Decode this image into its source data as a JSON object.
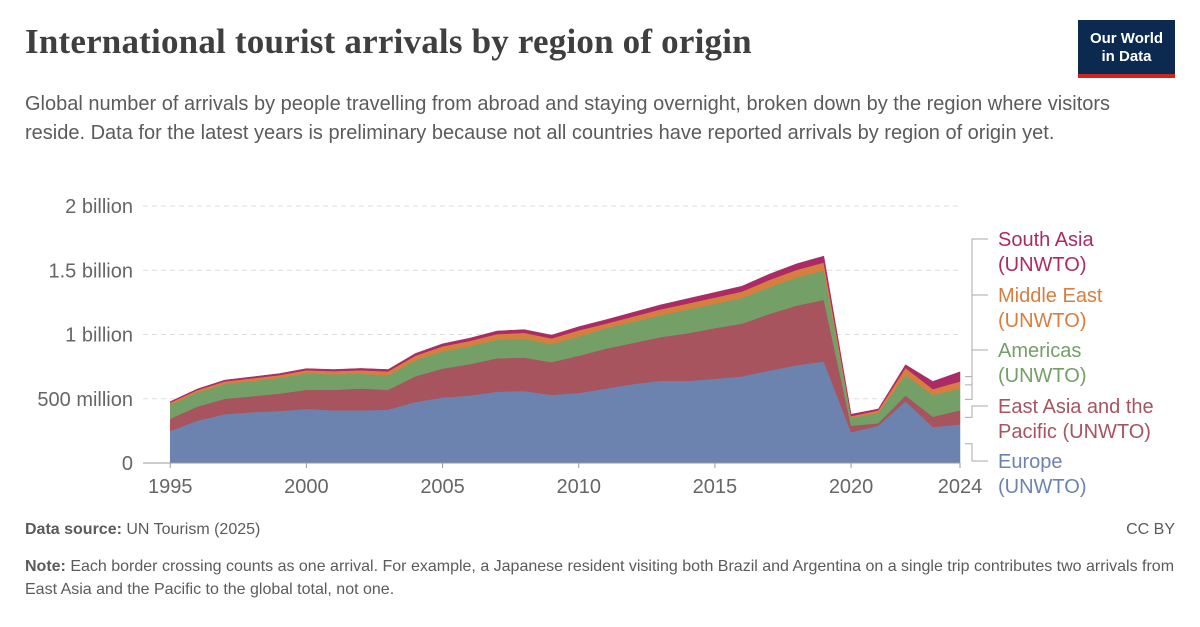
{
  "header": {
    "title": "International tourist arrivals by region of origin",
    "subtitle": "Global number of arrivals by people travelling from abroad and staying overnight, broken down by the region where visitors reside. Data for the latest years is preliminary because not all countries have reported arrivals by region of origin yet.",
    "logo_line1": "Our World",
    "logo_line2": "in Data"
  },
  "footer": {
    "source_label": "Data source:",
    "source_text": "UN Tourism (2025)",
    "license": "CC BY",
    "note_label": "Note:",
    "note_text": "Each border crossing counts as one arrival. For example, a Japanese resident visiting both Brazil and Argentina on a single trip contributes two arrivals from East Asia and the Pacific to the global total, not one."
  },
  "colors": {
    "Europe": "#6d83af",
    "East Asia and the Pacific": "#a7545f",
    "Americas": "#749f66",
    "Middle East": "#d77e3f",
    "South Asia": "#ab2b66",
    "grid": "#dddddd",
    "axis_text": "#666666"
  },
  "chart_data": {
    "type": "area",
    "stacked": true,
    "title": "International tourist arrivals by region of origin",
    "x": [
      1995,
      1996,
      1997,
      1998,
      1999,
      2000,
      2001,
      2002,
      2003,
      2004,
      2005,
      2006,
      2007,
      2008,
      2009,
      2010,
      2011,
      2012,
      2013,
      2014,
      2015,
      2016,
      2017,
      2018,
      2019,
      2020,
      2021,
      2022,
      2023,
      2024
    ],
    "x_ticks": [
      "1995",
      "2000",
      "2005",
      "2010",
      "2015",
      "2020",
      "2024"
    ],
    "x_tick_values": [
      1995,
      2000,
      2005,
      2010,
      2015,
      2020,
      2024
    ],
    "xlim": [
      1994,
      2024
    ],
    "ylim": [
      0,
      2000000000
    ],
    "y_ticks": [
      {
        "value": 0,
        "label": "0"
      },
      {
        "value": 500000000,
        "label": "500 million"
      },
      {
        "value": 1000000000,
        "label": "1 billion"
      },
      {
        "value": 1500000000,
        "label": "1.5 billion"
      },
      {
        "value": 2000000000,
        "label": "2 billion"
      }
    ],
    "grid": true,
    "legend_position": "right",
    "series": [
      {
        "name": "Europe (UNWTO)",
        "key": "Europe",
        "label_lines": [
          "Europe",
          "(UNWTO)"
        ],
        "values": [
          250000000,
          330000000,
          380000000,
          395000000,
          405000000,
          420000000,
          410000000,
          410000000,
          415000000,
          475000000,
          510000000,
          525000000,
          555000000,
          560000000,
          530000000,
          545000000,
          580000000,
          615000000,
          640000000,
          640000000,
          655000000,
          675000000,
          720000000,
          760000000,
          790000000,
          240000000,
          290000000,
          480000000,
          280000000,
          300000000
        ]
      },
      {
        "name": "East Asia and the Pacific (UNWTO)",
        "key": "East Asia and the Pacific",
        "label_lines": [
          "East Asia and the",
          "Pacific (UNWTO)"
        ],
        "values": [
          95000000,
          110000000,
          120000000,
          125000000,
          135000000,
          150000000,
          160000000,
          170000000,
          155000000,
          200000000,
          225000000,
          245000000,
          260000000,
          260000000,
          255000000,
          290000000,
          310000000,
          320000000,
          340000000,
          370000000,
          395000000,
          410000000,
          440000000,
          465000000,
          480000000,
          50000000,
          20000000,
          45000000,
          80000000,
          110000000
        ]
      },
      {
        "name": "Americas (UNWTO)",
        "key": "Americas",
        "label_lines": [
          "Americas",
          "(UNWTO)"
        ],
        "values": [
          110000000,
          110000000,
          115000000,
          118000000,
          122000000,
          128000000,
          120000000,
          115000000,
          113000000,
          125000000,
          135000000,
          140000000,
          145000000,
          148000000,
          140000000,
          150000000,
          160000000,
          165000000,
          170000000,
          185000000,
          190000000,
          200000000,
          210000000,
          220000000,
          230000000,
          60000000,
          80000000,
          160000000,
          170000000,
          170000000
        ]
      },
      {
        "name": "Middle East (UNWTO)",
        "key": "Middle East",
        "label_lines": [
          "Middle East",
          "(UNWTO)"
        ],
        "values": [
          15000000,
          18000000,
          20000000,
          21000000,
          22000000,
          24000000,
          25000000,
          27000000,
          30000000,
          35000000,
          38000000,
          40000000,
          43000000,
          45000000,
          45000000,
          48000000,
          35000000,
          40000000,
          45000000,
          46000000,
          48000000,
          50000000,
          55000000,
          58000000,
          60000000,
          15000000,
          20000000,
          55000000,
          45000000,
          55000000
        ]
      },
      {
        "name": "South Asia (UNWTO)",
        "key": "South Asia",
        "label_lines": [
          "South Asia",
          "(UNWTO)"
        ],
        "values": [
          8000000,
          9000000,
          10000000,
          11000000,
          12000000,
          13000000,
          13000000,
          14000000,
          15000000,
          17000000,
          20000000,
          22000000,
          24000000,
          25000000,
          25000000,
          28000000,
          30000000,
          33000000,
          35000000,
          38000000,
          40000000,
          42000000,
          45000000,
          47000000,
          50000000,
          15000000,
          10000000,
          25000000,
          60000000,
          75000000
        ]
      }
    ]
  }
}
